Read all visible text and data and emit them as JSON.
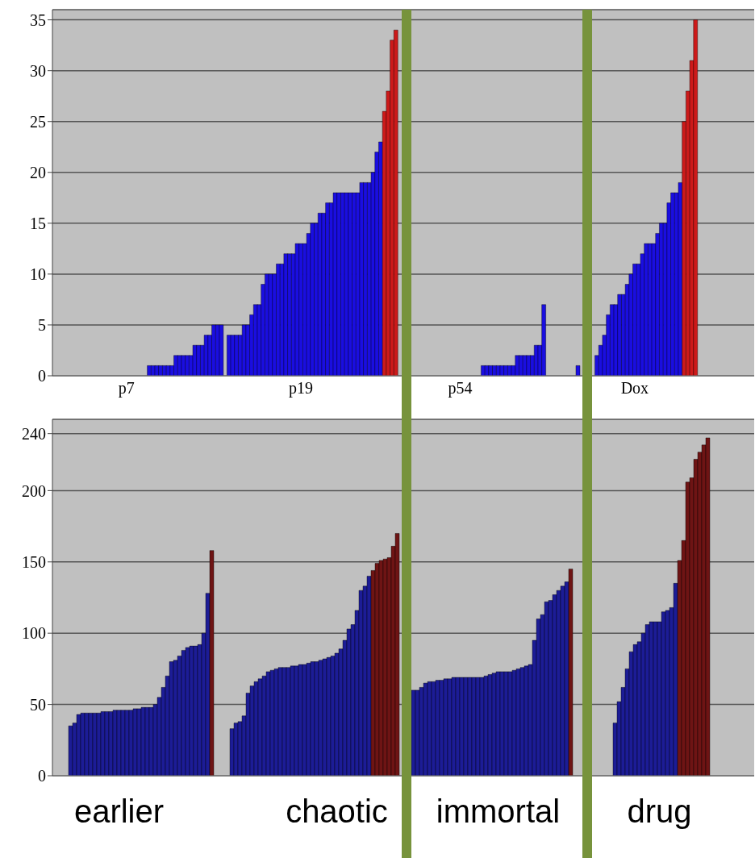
{
  "chart_data": [
    {
      "type": "bar",
      "grid": "y",
      "ylim": [
        0,
        36
      ],
      "yticks": [
        0,
        5,
        10,
        15,
        20,
        25,
        30,
        35
      ],
      "categories": [
        null,
        null,
        null,
        null,
        null,
        null,
        null,
        null,
        null,
        null,
        null,
        null,
        null,
        null,
        null,
        null,
        null,
        null,
        null,
        "p7",
        null,
        null,
        null,
        null,
        null,
        null,
        null,
        null,
        null,
        null,
        null,
        null,
        null,
        null,
        null,
        null,
        null,
        null,
        null,
        null,
        null,
        null,
        null,
        null,
        null,
        null,
        null,
        null,
        null,
        null,
        null,
        null,
        null,
        null,
        null,
        null,
        null,
        null,
        null,
        null,
        null,
        null,
        null,
        null,
        null,
        "p19",
        null,
        null,
        null,
        null,
        null,
        null,
        null,
        null,
        null,
        null,
        null,
        null,
        null,
        null,
        null,
        null,
        null,
        null,
        null,
        null,
        null,
        null,
        null,
        null,
        null,
        null,
        null,
        null,
        null,
        null,
        null,
        null,
        null,
        null,
        null,
        null,
        null,
        null,
        null,
        null,
        null,
        "p54",
        null,
        null,
        null,
        null,
        null,
        null,
        null,
        null,
        null,
        null,
        null,
        null,
        null,
        null,
        null,
        null,
        null,
        null,
        null,
        null,
        null,
        null,
        null,
        null,
        null,
        null,
        null,
        null,
        null,
        null,
        null,
        null,
        null,
        null,
        null,
        null,
        null,
        null,
        null,
        null,
        null,
        null,
        null,
        null,
        null,
        "Dox",
        null,
        null,
        null,
        null,
        null,
        null,
        null,
        null,
        null,
        null,
        null,
        null,
        null,
        null,
        null,
        null,
        null,
        null,
        null,
        null,
        null,
        null,
        null,
        null,
        null,
        null,
        null,
        null,
        null,
        null,
        null
      ],
      "values": [
        null,
        null,
        null,
        null,
        null,
        null,
        null,
        null,
        null,
        null,
        null,
        null,
        null,
        null,
        null,
        null,
        null,
        null,
        null,
        null,
        null,
        null,
        null,
        null,
        null,
        1,
        1,
        1,
        1,
        1,
        1,
        1,
        2,
        2,
        2,
        2,
        2,
        3,
        3,
        3,
        4,
        4,
        5,
        5,
        5,
        null,
        4,
        4,
        4,
        4,
        5,
        5,
        6,
        7,
        7,
        9,
        10,
        10,
        10,
        11,
        11,
        12,
        12,
        12,
        13,
        13,
        13,
        14,
        15,
        15,
        16,
        16,
        17,
        17,
        18,
        18,
        18,
        18,
        18,
        18,
        18,
        19,
        19,
        19,
        20,
        22,
        23,
        26,
        28,
        33,
        34,
        null,
        null,
        null,
        null,
        null,
        null,
        null,
        null,
        null,
        null,
        null,
        null,
        null,
        null,
        null,
        null,
        null,
        null,
        null,
        null,
        null,
        null,
        1,
        1,
        1,
        1,
        1,
        1,
        1,
        1,
        1,
        2,
        2,
        2,
        2,
        2,
        3,
        3,
        7,
        null,
        null,
        null,
        null,
        null,
        null,
        null,
        null,
        1,
        null,
        null,
        null,
        null,
        2,
        3,
        4,
        6,
        7,
        7,
        8,
        8,
        9,
        10,
        11,
        11,
        12,
        13,
        13,
        13,
        14,
        15,
        15,
        17,
        18,
        18,
        19,
        25,
        28,
        31,
        35,
        null,
        null,
        null,
        null,
        null,
        null,
        null,
        null,
        null,
        null,
        null,
        null,
        null,
        null,
        null
      ],
      "colors": [
        null,
        null,
        null,
        null,
        null,
        null,
        null,
        null,
        null,
        null,
        null,
        null,
        null,
        null,
        null,
        null,
        null,
        null,
        null,
        null,
        null,
        null,
        null,
        null,
        null,
        "#1a0ee0",
        "#1a0ee0",
        "#1a0ee0",
        "#1a0ee0",
        "#1a0ee0",
        "#1a0ee0",
        "#1a0ee0",
        "#1a0ee0",
        "#1a0ee0",
        "#1a0ee0",
        "#1a0ee0",
        "#1a0ee0",
        "#1a0ee0",
        "#1a0ee0",
        "#1a0ee0",
        "#1a0ee0",
        "#1a0ee0",
        "#1a0ee0",
        "#1a0ee0",
        "#1a0ee0",
        null,
        "#1a0ee0",
        "#1a0ee0",
        "#1a0ee0",
        "#1a0ee0",
        "#1a0ee0",
        "#1a0ee0",
        "#1a0ee0",
        "#1a0ee0",
        "#1a0ee0",
        "#1a0ee0",
        "#1a0ee0",
        "#1a0ee0",
        "#1a0ee0",
        "#1a0ee0",
        "#1a0ee0",
        "#1a0ee0",
        "#1a0ee0",
        "#1a0ee0",
        "#1a0ee0",
        "#1a0ee0",
        "#1a0ee0",
        "#1a0ee0",
        "#1a0ee0",
        "#1a0ee0",
        "#1a0ee0",
        "#1a0ee0",
        "#1a0ee0",
        "#1a0ee0",
        "#1a0ee0",
        "#1a0ee0",
        "#1a0ee0",
        "#1a0ee0",
        "#1a0ee0",
        "#1a0ee0",
        "#1a0ee0",
        "#1a0ee0",
        "#1a0ee0",
        "#1a0ee0",
        "#1a0ee0",
        "#1a0ee0",
        "#1a0ee0",
        "#cc1a1a",
        "#cc1a1a",
        "#cc1a1a",
        "#cc1a1a",
        null,
        null,
        null,
        null,
        null,
        null,
        null,
        null,
        null,
        null,
        null,
        null,
        null,
        null,
        null,
        null,
        null,
        null,
        null,
        null,
        null,
        null,
        "#1a0ee0",
        "#1a0ee0",
        "#1a0ee0",
        "#1a0ee0",
        "#1a0ee0",
        "#1a0ee0",
        "#1a0ee0",
        "#1a0ee0",
        "#1a0ee0",
        "#1a0ee0",
        "#1a0ee0",
        "#1a0ee0",
        "#1a0ee0",
        "#1a0ee0",
        "#1a0ee0",
        "#1a0ee0",
        "#1a0ee0",
        null,
        null,
        null,
        null,
        null,
        null,
        null,
        null,
        "#1a0ee0",
        null,
        null,
        null,
        null,
        "#1a0ee0",
        "#1a0ee0",
        "#1a0ee0",
        "#1a0ee0",
        "#1a0ee0",
        "#1a0ee0",
        "#1a0ee0",
        "#1a0ee0",
        "#1a0ee0",
        "#1a0ee0",
        "#1a0ee0",
        "#1a0ee0",
        "#1a0ee0",
        "#1a0ee0",
        "#1a0ee0",
        "#1a0ee0",
        "#1a0ee0",
        "#1a0ee0",
        "#1a0ee0",
        "#1a0ee0",
        "#1a0ee0",
        "#1a0ee0",
        "#1a0ee0",
        "#cc1a1a",
        "#cc1a1a",
        "#cc1a1a",
        "#cc1a1a",
        null,
        null,
        null,
        null,
        null,
        null,
        null,
        null,
        null,
        null,
        null,
        null,
        null,
        null,
        null
      ]
    },
    {
      "type": "bar",
      "grid": "y",
      "ylim": [
        0,
        250
      ],
      "yticks": [
        0,
        50,
        100,
        150,
        200,
        240
      ],
      "categories": [
        null,
        null,
        null,
        null,
        null,
        null,
        null,
        null,
        null,
        null,
        null,
        null,
        null,
        null,
        null,
        null,
        "earlier",
        null,
        null,
        null,
        null,
        null,
        null,
        null,
        null,
        null,
        null,
        null,
        null,
        null,
        null,
        null,
        null,
        null,
        null,
        null,
        null,
        null,
        null,
        null,
        null,
        null,
        null,
        null,
        null,
        null,
        null,
        null,
        null,
        null,
        null,
        null,
        null,
        null,
        null,
        null,
        null,
        null,
        null,
        null,
        null,
        null,
        null,
        null,
        null,
        null,
        null,
        null,
        null,
        null,
        "chaotic",
        null,
        null,
        null,
        null,
        null,
        null,
        null,
        null,
        null,
        null,
        null,
        null,
        null,
        null,
        null,
        null,
        null,
        null,
        null,
        null,
        null,
        null,
        null,
        null,
        null,
        null,
        null,
        null,
        null,
        null,
        null,
        null,
        null,
        null,
        null,
        null,
        null,
        null,
        null,
        "immortal",
        null,
        null,
        null,
        null,
        null,
        null,
        null,
        null,
        null,
        null,
        null,
        null,
        null,
        null,
        null,
        null,
        null,
        null,
        null,
        null,
        null,
        null,
        null,
        null,
        null,
        null,
        null,
        null,
        null,
        null,
        null,
        null,
        null,
        null,
        null,
        null,
        null,
        null,
        null,
        "drug",
        null,
        null,
        null,
        null,
        null,
        null,
        null,
        null,
        null,
        null,
        null,
        null,
        null,
        null,
        null,
        null,
        null,
        null,
        null,
        null,
        null,
        null,
        null
      ],
      "values": [
        null,
        null,
        null,
        null,
        35,
        37,
        43,
        44,
        44,
        44,
        44,
        44,
        45,
        45,
        45,
        46,
        46,
        46,
        46,
        46,
        47,
        47,
        48,
        48,
        48,
        50,
        55,
        62,
        70,
        80,
        81,
        84,
        88,
        90,
        91,
        91,
        92,
        100,
        128,
        158,
        null,
        null,
        null,
        null,
        33,
        37,
        38,
        42,
        58,
        63,
        66,
        68,
        70,
        73,
        74,
        75,
        76,
        76,
        76,
        77,
        77,
        78,
        78,
        79,
        80,
        80,
        81,
        82,
        83,
        84,
        86,
        89,
        95,
        103,
        106,
        116,
        130,
        133,
        140,
        144,
        149,
        151,
        152,
        153,
        161,
        170,
        null,
        null,
        null,
        60,
        60,
        62,
        65,
        66,
        66,
        67,
        67,
        68,
        68,
        69,
        69,
        69,
        69,
        69,
        69,
        69,
        69,
        70,
        71,
        72,
        73,
        73,
        73,
        73,
        74,
        75,
        76,
        77,
        78,
        95,
        110,
        113,
        122,
        123,
        127,
        130,
        133,
        136,
        145,
        null,
        null,
        null,
        null,
        null,
        null,
        null,
        null,
        null,
        null,
        37,
        52,
        62,
        75,
        87,
        92,
        94,
        100,
        106,
        108,
        108,
        108,
        115,
        116,
        118,
        135,
        151,
        165,
        206,
        209,
        222,
        227,
        232,
        237,
        null,
        null,
        null,
        null,
        null,
        null,
        null,
        null,
        null,
        null,
        null
      ],
      "colors": [
        null,
        null,
        null,
        null,
        "#1c1c96",
        "#1c1c96",
        "#1c1c96",
        "#1c1c96",
        "#1c1c96",
        "#1c1c96",
        "#1c1c96",
        "#1c1c96",
        "#1c1c96",
        "#1c1c96",
        "#1c1c96",
        "#1c1c96",
        "#1c1c96",
        "#1c1c96",
        "#1c1c96",
        "#1c1c96",
        "#1c1c96",
        "#1c1c96",
        "#1c1c96",
        "#1c1c96",
        "#1c1c96",
        "#1c1c96",
        "#1c1c96",
        "#1c1c96",
        "#1c1c96",
        "#1c1c96",
        "#1c1c96",
        "#1c1c96",
        "#1c1c96",
        "#1c1c96",
        "#1c1c96",
        "#1c1c96",
        "#1c1c96",
        "#1c1c96",
        "#1c1c96",
        "#6e1414",
        null,
        null,
        null,
        null,
        "#1c1c96",
        "#1c1c96",
        "#1c1c96",
        "#1c1c96",
        "#1c1c96",
        "#1c1c96",
        "#1c1c96",
        "#1c1c96",
        "#1c1c96",
        "#1c1c96",
        "#1c1c96",
        "#1c1c96",
        "#1c1c96",
        "#1c1c96",
        "#1c1c96",
        "#1c1c96",
        "#1c1c96",
        "#1c1c96",
        "#1c1c96",
        "#1c1c96",
        "#1c1c96",
        "#1c1c96",
        "#1c1c96",
        "#1c1c96",
        "#1c1c96",
        "#1c1c96",
        "#1c1c96",
        "#1c1c96",
        "#1c1c96",
        "#1c1c96",
        "#1c1c96",
        "#1c1c96",
        "#1c1c96",
        "#1c1c96",
        "#1c1c96",
        "#6e1414",
        "#6e1414",
        "#6e1414",
        "#6e1414",
        "#6e1414",
        "#6e1414",
        "#6e1414",
        null,
        null,
        null,
        "#1c1c96",
        "#1c1c96",
        "#1c1c96",
        "#1c1c96",
        "#1c1c96",
        "#1c1c96",
        "#1c1c96",
        "#1c1c96",
        "#1c1c96",
        "#1c1c96",
        "#1c1c96",
        "#1c1c96",
        "#1c1c96",
        "#1c1c96",
        "#1c1c96",
        "#1c1c96",
        "#1c1c96",
        "#1c1c96",
        "#1c1c96",
        "#1c1c96",
        "#1c1c96",
        "#1c1c96",
        "#1c1c96",
        "#1c1c96",
        "#1c1c96",
        "#1c1c96",
        "#1c1c96",
        "#1c1c96",
        "#1c1c96",
        "#1c1c96",
        "#1c1c96",
        "#1c1c96",
        "#1c1c96",
        "#1c1c96",
        "#1c1c96",
        "#1c1c96",
        "#1c1c96",
        "#1c1c96",
        "#1c1c96",
        "#6e1414",
        null,
        null,
        null,
        null,
        null,
        null,
        null,
        null,
        null,
        null,
        "#1c1c96",
        "#1c1c96",
        "#1c1c96",
        "#1c1c96",
        "#1c1c96",
        "#1c1c96",
        "#1c1c96",
        "#1c1c96",
        "#1c1c96",
        "#1c1c96",
        "#1c1c96",
        "#1c1c96",
        "#1c1c96",
        "#1c1c96",
        "#1c1c96",
        "#1c1c96",
        "#6e1414",
        "#6e1414",
        "#6e1414",
        "#6e1414",
        "#6e1414",
        "#6e1414",
        "#6e1414",
        "#6e1414",
        null,
        null,
        null,
        null,
        null,
        null,
        null,
        null,
        null,
        null,
        null
      ]
    }
  ]
}
